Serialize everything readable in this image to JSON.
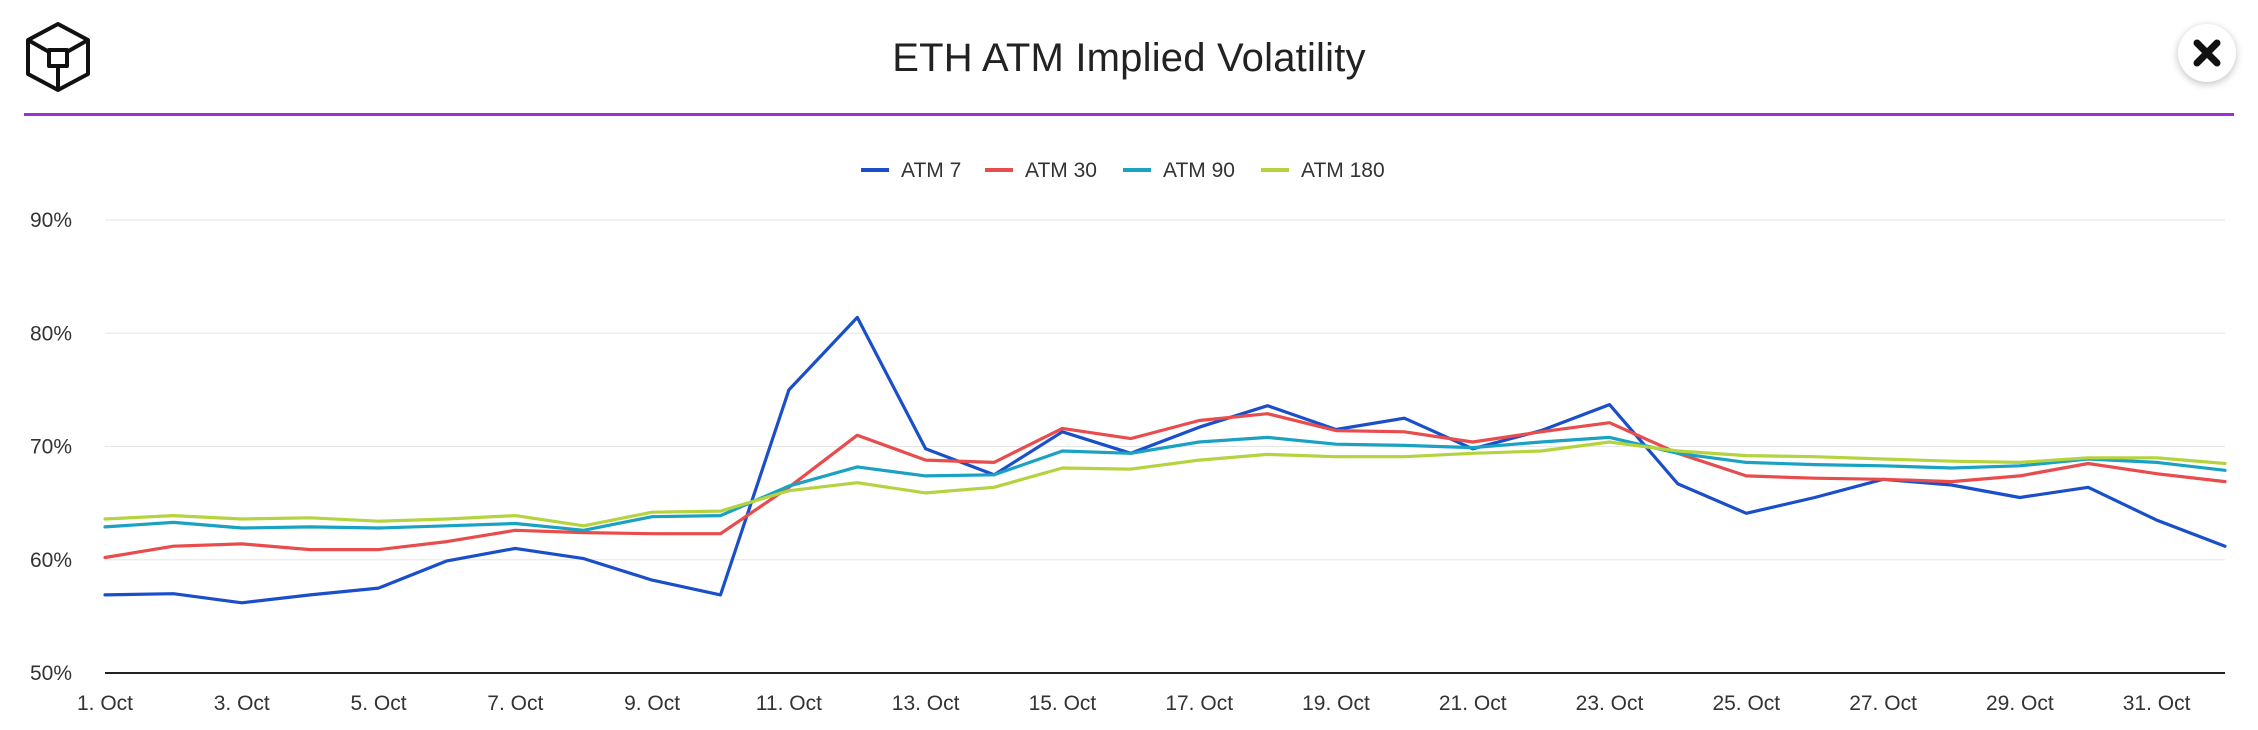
{
  "header": {
    "title": "ETH ATM Implied Volatility"
  },
  "icons": {
    "logo": "cube-logo-icon",
    "close": "close-icon"
  },
  "chart_data": {
    "type": "line",
    "title": "ETH ATM Implied Volatility",
    "xlabel": "",
    "ylabel": "",
    "ylim": [
      50,
      90
    ],
    "yticks": [
      50,
      60,
      70,
      80,
      90
    ],
    "ytick_labels": [
      "50%",
      "60%",
      "70%",
      "80%",
      "90%"
    ],
    "grid": true,
    "legend_position": "top-center",
    "x": [
      "1. Oct",
      "2. Oct",
      "3. Oct",
      "4. Oct",
      "5. Oct",
      "6. Oct",
      "7. Oct",
      "8. Oct",
      "9. Oct",
      "10. Oct",
      "11. Oct",
      "12. Oct",
      "13. Oct",
      "14. Oct",
      "15. Oct",
      "16. Oct",
      "17. Oct",
      "18. Oct",
      "19. Oct",
      "20. Oct",
      "21. Oct",
      "22. Oct",
      "23. Oct",
      "24. Oct",
      "25. Oct",
      "26. Oct",
      "27. Oct",
      "28. Oct",
      "29. Oct",
      "30. Oct",
      "31. Oct",
      "1. Nov"
    ],
    "xtick_labels": [
      "1. Oct",
      "3. Oct",
      "5. Oct",
      "7. Oct",
      "9. Oct",
      "11. Oct",
      "13. Oct",
      "15. Oct",
      "17. Oct",
      "19. Oct",
      "21. Oct",
      "23. Oct",
      "25. Oct",
      "27. Oct",
      "29. Oct",
      "31. Oct"
    ],
    "series": [
      {
        "name": "ATM 7",
        "color": "#1a4fc9",
        "values": [
          56.9,
          57.0,
          56.2,
          56.9,
          57.5,
          59.9,
          61.0,
          60.1,
          58.2,
          56.9,
          75.0,
          81.4,
          69.8,
          67.5,
          71.3,
          69.4,
          71.7,
          73.6,
          71.5,
          72.5,
          69.8,
          71.4,
          73.7,
          66.7,
          64.1,
          65.5,
          67.1,
          66.6,
          65.5,
          66.4,
          63.5,
          61.2
        ]
      },
      {
        "name": "ATM 30",
        "color": "#e84c4c",
        "values": [
          60.2,
          61.2,
          61.4,
          60.9,
          60.9,
          61.6,
          62.6,
          62.4,
          62.3,
          62.3,
          66.4,
          71.0,
          68.8,
          68.6,
          71.6,
          70.7,
          72.3,
          72.9,
          71.4,
          71.3,
          70.4,
          71.3,
          72.1,
          69.4,
          67.4,
          67.2,
          67.1,
          66.9,
          67.4,
          68.5,
          67.6,
          66.9
        ]
      },
      {
        "name": "ATM 90",
        "color": "#1ba1c2",
        "values": [
          62.9,
          63.3,
          62.8,
          62.9,
          62.8,
          63.0,
          63.2,
          62.6,
          63.8,
          63.9,
          66.5,
          68.2,
          67.4,
          67.5,
          69.6,
          69.4,
          70.4,
          70.8,
          70.2,
          70.1,
          69.9,
          70.4,
          70.8,
          69.4,
          68.6,
          68.4,
          68.3,
          68.1,
          68.3,
          68.9,
          68.6,
          67.9
        ]
      },
      {
        "name": "ATM 180",
        "color": "#b5d33f",
        "values": [
          63.6,
          63.9,
          63.6,
          63.7,
          63.4,
          63.6,
          63.9,
          63.0,
          64.2,
          64.3,
          66.1,
          66.8,
          65.9,
          66.4,
          68.1,
          68.0,
          68.8,
          69.3,
          69.1,
          69.1,
          69.4,
          69.6,
          70.4,
          69.6,
          69.2,
          69.1,
          68.9,
          68.7,
          68.6,
          69.0,
          69.0,
          68.5
        ]
      }
    ]
  }
}
